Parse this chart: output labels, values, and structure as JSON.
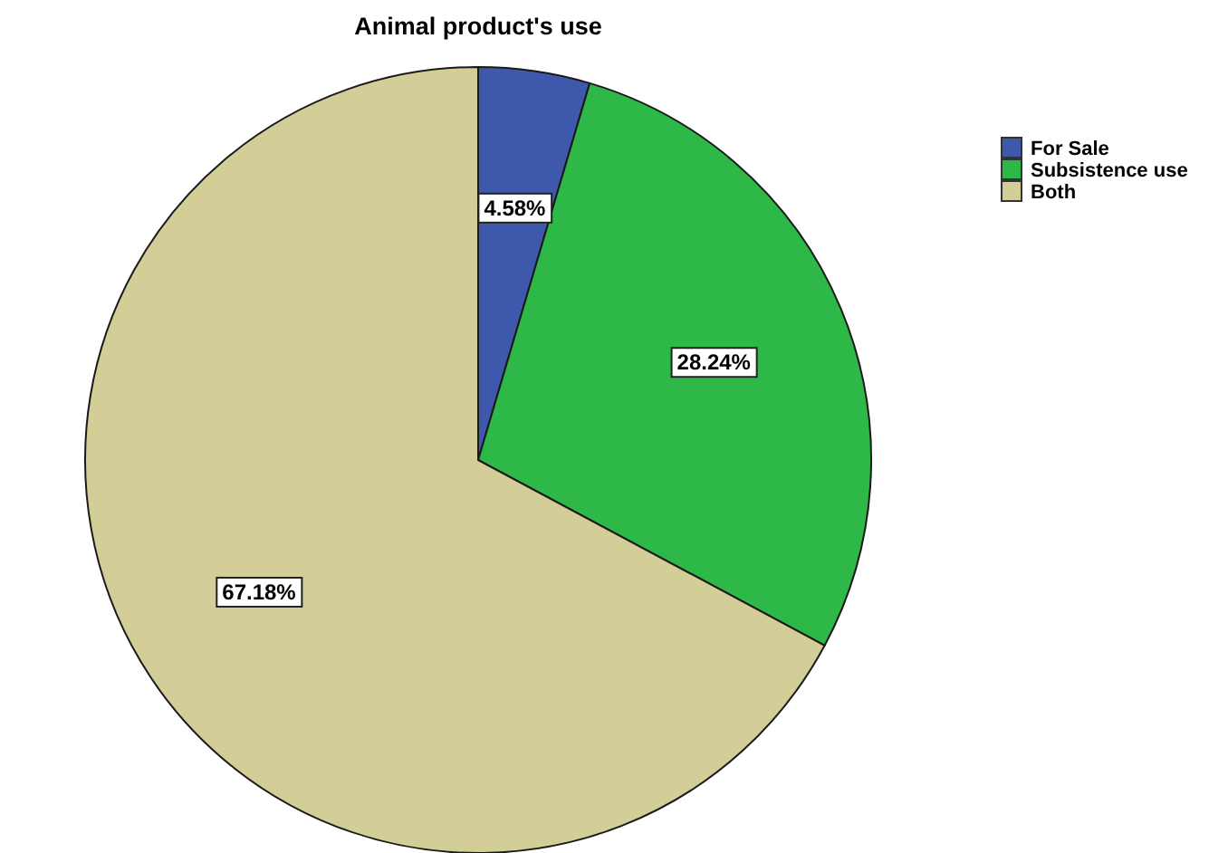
{
  "chart_data": {
    "type": "pie",
    "title": "Animal product's use",
    "categories": [
      "For Sale",
      "Subsistence use",
      "Both"
    ],
    "values": [
      4.58,
      28.24,
      67.18
    ],
    "value_labels": [
      "4.58%",
      "28.24%",
      "67.18%"
    ],
    "colors": [
      "#3e58ac",
      "#2eb848",
      "#d3ce97"
    ],
    "legend": "top right"
  }
}
